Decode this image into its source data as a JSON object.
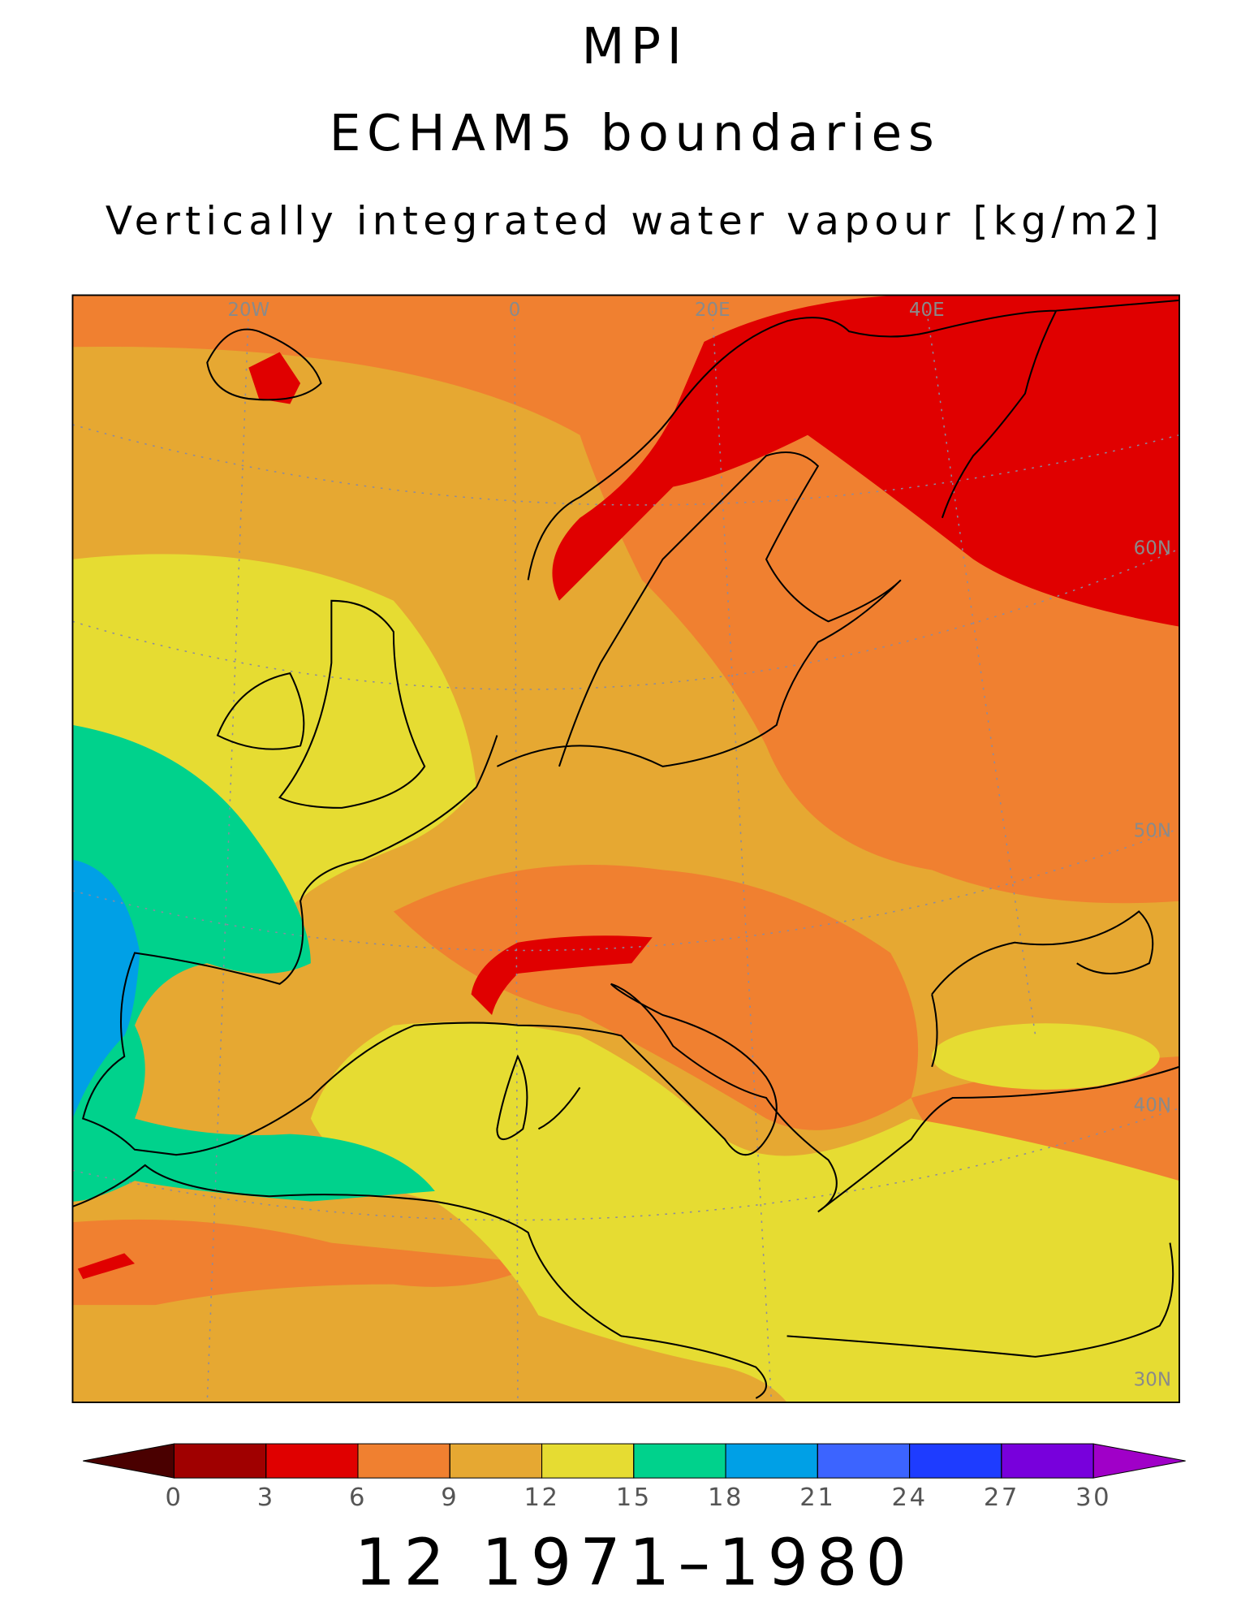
{
  "header": {
    "model": "MPI",
    "experiment": "ECHAM5 boundaries",
    "variable": "Vertically integrated water vapour [kg/m2]"
  },
  "map": {
    "lon_labels": [
      "20W",
      "0",
      "20E",
      "40E"
    ],
    "lat_labels": [
      "60N",
      "50N",
      "40N",
      "30N"
    ]
  },
  "colorbar": {
    "ticks": [
      0,
      3,
      6,
      9,
      12,
      15,
      18,
      21,
      24,
      27,
      30
    ],
    "colors": [
      "#4a0000",
      "#a00000",
      "#e00000",
      "#f08030",
      "#e6a832",
      "#e6dc32",
      "#00d28c",
      "#00a0e6",
      "#3c64ff",
      "#1e3cff",
      "#7800dc",
      "#a000c8"
    ]
  },
  "footer": {
    "period": "12 1971–1980"
  }
}
